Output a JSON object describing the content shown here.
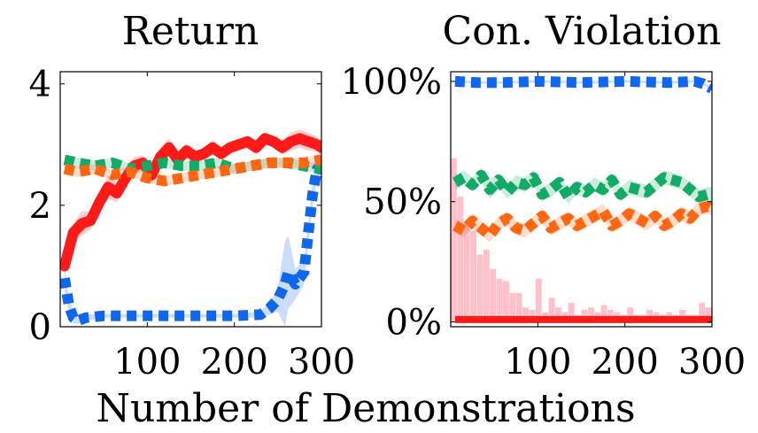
{
  "figure": {
    "xlabel": "Number of Demonstrations"
  },
  "chart_data": [
    {
      "type": "line",
      "title": "Return",
      "xlabel": "Number of Demonstrations",
      "ylabel": "",
      "xlim": [
        0,
        300
      ],
      "ylim": [
        0,
        4.2
      ],
      "xticks": [
        100,
        200,
        300
      ],
      "xtick_labels": [
        "100",
        "200",
        "300"
      ],
      "yticks": [
        0,
        2,
        4
      ],
      "ytick_labels": [
        "0",
        "2",
        "4"
      ],
      "grid": false,
      "legend": "none",
      "series": [
        {
          "color": "#ff1a1a",
          "style": "solid",
          "x": [
            5,
            15,
            25,
            35,
            45,
            55,
            65,
            75,
            85,
            95,
            105,
            115,
            125,
            135,
            145,
            155,
            165,
            175,
            185,
            195,
            205,
            215,
            225,
            235,
            245,
            255,
            265,
            275,
            285,
            295,
            300
          ],
          "values": [
            1.0,
            1.55,
            1.7,
            1.75,
            2.05,
            2.3,
            2.2,
            2.45,
            2.65,
            2.7,
            2.5,
            2.8,
            2.95,
            2.75,
            2.9,
            2.8,
            2.85,
            2.95,
            2.85,
            2.95,
            3.0,
            3.05,
            2.95,
            3.1,
            3.05,
            2.95,
            3.05,
            3.1,
            3.05,
            3.0,
            2.95
          ],
          "band": [
            0.15,
            0.15,
            0.2,
            0.15,
            0.15,
            0.2,
            0.15,
            0.15,
            0.15,
            0.12,
            0.15,
            0.15,
            0.15,
            0.12,
            0.12,
            0.1,
            0.1,
            0.12,
            0.1,
            0.1,
            0.1,
            0.1,
            0.12,
            0.1,
            0.1,
            0.12,
            0.15,
            0.15,
            0.15,
            0.12,
            0.12
          ]
        },
        {
          "color": "#1166ee",
          "style": "dotted",
          "x": [
            5,
            10,
            15,
            20,
            30,
            50,
            100,
            150,
            200,
            230,
            240,
            250,
            258,
            262,
            270,
            280,
            290,
            295,
            300
          ],
          "values": [
            0.8,
            0.35,
            0.15,
            0.1,
            0.15,
            0.18,
            0.18,
            0.18,
            0.18,
            0.2,
            0.3,
            0.45,
            0.7,
            0.9,
            0.7,
            0.9,
            2.2,
            2.6,
            2.6
          ],
          "band": [
            0.2,
            0.15,
            0.1,
            0.05,
            0.05,
            0.03,
            0.03,
            0.03,
            0.03,
            0.05,
            0.1,
            0.2,
            0.7,
            0.6,
            0.25,
            0.2,
            0.2,
            0.15,
            0.1
          ]
        },
        {
          "color": "#11aa66",
          "style": "dotted",
          "x": [
            5,
            20,
            40,
            60,
            80,
            100,
            120,
            140,
            160,
            180,
            200,
            220,
            240,
            260,
            280,
            300
          ],
          "values": [
            2.75,
            2.7,
            2.65,
            2.7,
            2.6,
            2.65,
            2.7,
            2.65,
            2.65,
            2.7,
            2.6,
            2.65,
            2.7,
            2.7,
            2.65,
            2.6
          ],
          "band": [
            0.08,
            0.08,
            0.08,
            0.08,
            0.08,
            0.08,
            0.08,
            0.08,
            0.08,
            0.08,
            0.08,
            0.08,
            0.08,
            0.08,
            0.08,
            0.08
          ]
        },
        {
          "color": "#ff6611",
          "style": "dotted",
          "x": [
            5,
            20,
            40,
            60,
            80,
            100,
            120,
            140,
            160,
            180,
            200,
            220,
            240,
            260,
            280,
            300
          ],
          "values": [
            2.6,
            2.55,
            2.6,
            2.5,
            2.55,
            2.45,
            2.4,
            2.45,
            2.5,
            2.55,
            2.6,
            2.65,
            2.7,
            2.7,
            2.7,
            2.75
          ],
          "band": [
            0.08,
            0.08,
            0.08,
            0.08,
            0.08,
            0.08,
            0.08,
            0.08,
            0.08,
            0.08,
            0.08,
            0.08,
            0.08,
            0.08,
            0.08,
            0.08
          ]
        }
      ]
    },
    {
      "type": "line",
      "title": "Con. Violation",
      "xlabel": "Number of Demonstrations",
      "ylabel": "",
      "xlim": [
        0,
        300
      ],
      "ylim": [
        -2,
        104
      ],
      "xticks": [
        100,
        200,
        300
      ],
      "xtick_labels": [
        "100",
        "200",
        "300"
      ],
      "yticks": [
        0,
        50,
        100
      ],
      "ytick_labels": [
        "0%",
        "50%",
        "100%"
      ],
      "grid": false,
      "legend": "none",
      "histogram": {
        "color": "#ffc0cb",
        "bin_width": 7.5,
        "bin_starts": [
          0,
          7.5,
          15,
          22.5,
          30,
          37.5,
          45,
          52.5,
          60,
          67.5,
          75,
          82.5,
          90,
          97.5,
          105,
          112.5,
          120,
          127.5,
          135,
          142.5,
          150,
          157.5,
          165,
          172.5,
          180,
          187.5,
          195,
          202.5,
          210,
          217.5,
          225,
          232.5,
          240,
          247.5,
          255,
          262.5,
          270,
          277.5,
          285,
          292.5
        ],
        "values": [
          68,
          52,
          42,
          38,
          28,
          30,
          22,
          18,
          17,
          12,
          12,
          6,
          5,
          18,
          4,
          10,
          6,
          4,
          8,
          3,
          5,
          6,
          4,
          7,
          5,
          4,
          3,
          6,
          3,
          3,
          5,
          4,
          3,
          4,
          3,
          5,
          3,
          3,
          8,
          6
        ]
      },
      "series": [
        {
          "color": "#1166ee",
          "style": "dotted",
          "x": [
            5,
            30,
            60,
            100,
            150,
            200,
            250,
            280,
            290,
            300
          ],
          "values": [
            100,
            99.5,
            99.5,
            100,
            99.5,
            100,
            99.5,
            100,
            99,
            97
          ],
          "band": [
            0.5,
            0.5,
            0.5,
            0.5,
            0.5,
            0.5,
            0.5,
            0.5,
            0.5,
            0.8
          ]
        },
        {
          "color": "#11aa66",
          "style": "dotted",
          "x": [
            5,
            15,
            25,
            35,
            45,
            55,
            65,
            75,
            85,
            95,
            105,
            115,
            125,
            135,
            145,
            155,
            165,
            175,
            185,
            195,
            205,
            215,
            225,
            235,
            245,
            255,
            265,
            275,
            285,
            295,
            300
          ],
          "values": [
            58,
            60,
            57,
            61,
            55,
            59,
            54,
            58,
            57,
            60,
            53,
            55,
            58,
            52,
            56,
            54,
            57,
            55,
            59,
            53,
            56,
            55,
            54,
            57,
            60,
            59,
            58,
            55,
            52,
            53,
            53
          ],
          "band": [
            3,
            3,
            3,
            3,
            4,
            3,
            3,
            3,
            3,
            3,
            3,
            3,
            3,
            3,
            3,
            3,
            3,
            3,
            3,
            3,
            3,
            3,
            3,
            3,
            3,
            3,
            3,
            3,
            3,
            3,
            3
          ]
        },
        {
          "color": "#ff6611",
          "style": "dotted",
          "x": [
            5,
            15,
            25,
            35,
            45,
            55,
            65,
            75,
            85,
            95,
            105,
            115,
            125,
            135,
            145,
            155,
            165,
            175,
            185,
            195,
            205,
            215,
            225,
            235,
            245,
            255,
            265,
            275,
            285,
            295,
            300
          ],
          "values": [
            40,
            38,
            42,
            39,
            36,
            41,
            43,
            39,
            38,
            41,
            44,
            39,
            41,
            43,
            40,
            42,
            44,
            46,
            40,
            42,
            45,
            43,
            41,
            44,
            40,
            42,
            45,
            43,
            47,
            48,
            47
          ],
          "band": [
            3,
            3,
            3,
            3,
            3,
            3,
            3,
            3,
            3,
            3,
            3,
            3,
            3,
            3,
            3,
            3,
            3,
            3,
            3,
            3,
            3,
            3,
            3,
            3,
            3,
            3,
            3,
            3,
            3,
            3,
            3
          ]
        },
        {
          "color": "#ff1a1a",
          "style": "solid",
          "x": [
            5,
            50,
            100,
            150,
            200,
            250,
            300
          ],
          "values": [
            1,
            1,
            1,
            1,
            1,
            1,
            1
          ],
          "band": [
            0,
            0,
            0,
            0,
            0,
            0,
            0
          ]
        }
      ]
    }
  ]
}
